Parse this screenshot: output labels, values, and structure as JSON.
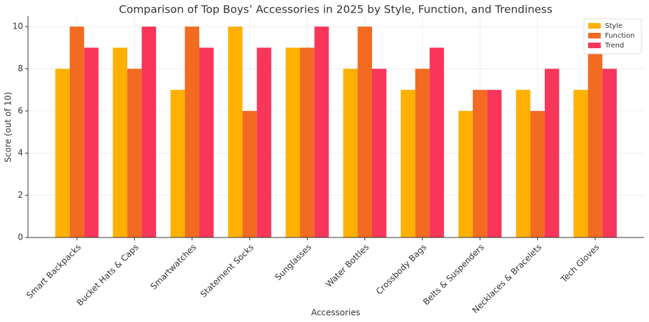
{
  "chart_data": {
    "type": "bar",
    "title": "Comparison of Top Boys’ Accessories in 2025 by Style, Function, and Trendiness",
    "x_label": "Accessories",
    "y_label": "Score (out of 10)",
    "categories": [
      "Smart Backpacks",
      "Bucket Hats & Caps",
      "Smartwatches",
      "Statement Socks",
      "Sunglasses",
      "Water Bottles",
      "Crossbody Bags",
      "Belts & Suspenders",
      "Necklaces & Bracelets",
      "Tech Gloves"
    ],
    "series": [
      {
        "name": "Style",
        "color": "#ffb000",
        "values": [
          8,
          9,
          7,
          10,
          9,
          8,
          7,
          6,
          7,
          7
        ]
      },
      {
        "name": "Function",
        "color": "#f26b21",
        "values": [
          10,
          8,
          10,
          6,
          9,
          10,
          8,
          7,
          6,
          9
        ]
      },
      {
        "name": "Trend",
        "color": "#f7365a",
        "values": [
          9,
          10,
          9,
          9,
          10,
          8,
          9,
          7,
          8,
          8
        ]
      }
    ],
    "ylim": [
      0,
      10.5
    ],
    "yticks": [
      0,
      2,
      4,
      6,
      8,
      10
    ],
    "grid": true,
    "legend": "upper right"
  }
}
